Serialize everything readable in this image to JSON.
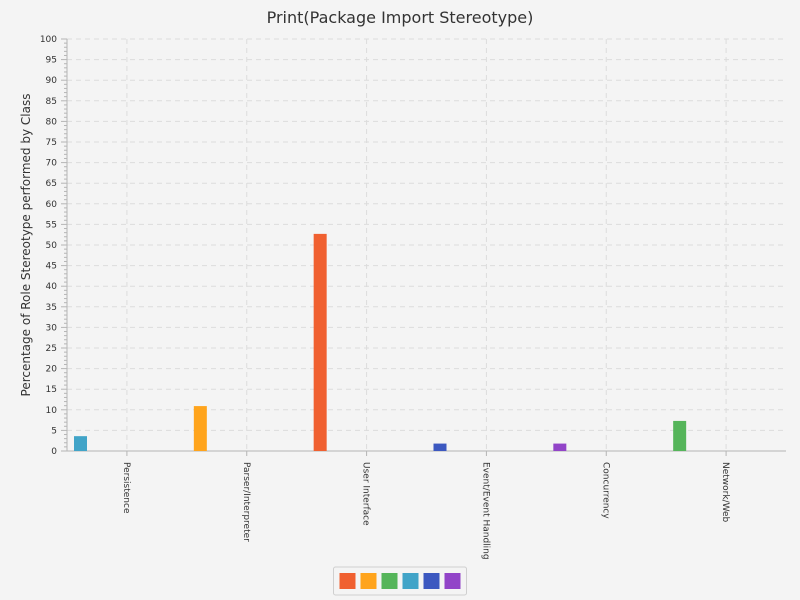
{
  "chart_data": {
    "type": "bar",
    "title": "Print(Package Import Stereotype)",
    "xlabel": "",
    "ylabel": "Percentage of Role Stereotype performed by Class",
    "ylim": [
      0,
      100
    ],
    "y_major_step": 5,
    "y_minor_step": 1,
    "grid": true,
    "legend_position": "bottom",
    "categories": [
      "Persistence",
      "Parser/Interpreter",
      "User Interface",
      "Event/Event Handling",
      "Concurrency",
      "Network/Web"
    ],
    "series": [
      {
        "color": "#f06030",
        "values": [
          0,
          0,
          52.7,
          0,
          0,
          0
        ]
      },
      {
        "color": "#ffa41c",
        "values": [
          0,
          10.9,
          0,
          0,
          0,
          0
        ]
      },
      {
        "color": "#55b55a",
        "values": [
          0,
          0,
          0,
          0,
          0,
          7.3
        ]
      },
      {
        "color": "#41a4c8",
        "values": [
          3.6,
          0,
          0,
          0,
          0,
          0
        ]
      },
      {
        "color": "#3c58c0",
        "values": [
          0,
          0,
          0,
          1.8,
          0,
          0
        ]
      },
      {
        "color": "#9244c8",
        "values": [
          0,
          0,
          0,
          0,
          1.8,
          0
        ]
      }
    ]
  }
}
